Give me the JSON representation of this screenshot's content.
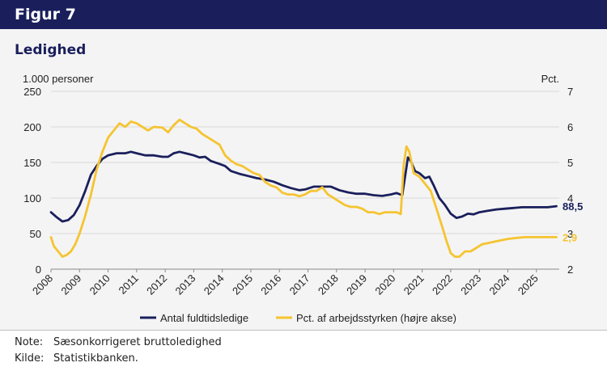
{
  "figure_label": "Figur 7",
  "subtitle": "Ledighed",
  "notes": {
    "note_key": "Note:",
    "note_text": "Sæsonkorrigeret bruttoledighed",
    "source_key": "Kilde:",
    "source_text": "Statistikbanken."
  },
  "colors": {
    "header": "#1a1f5c",
    "navy_series": "#1a1f5c",
    "gold_series": "#f5c431",
    "panel": "#f4f4f4"
  },
  "chart_data": {
    "type": "line",
    "left_axis_title": "1.000 personer",
    "right_axis_title": "Pct.",
    "left_ylim": [
      0,
      250
    ],
    "left_yticks": [
      "0",
      "50",
      "100",
      "150",
      "200",
      "250"
    ],
    "right_ylim": [
      2,
      7
    ],
    "right_yticks": [
      "2",
      "3",
      "4",
      "5",
      "6",
      "7"
    ],
    "xlim": [
      2008,
      2025.8
    ],
    "xticks": [
      "2008",
      "2009",
      "2010",
      "2011",
      "2012",
      "2013",
      "2014",
      "2015",
      "2016",
      "2017",
      "2018",
      "2019",
      "2020",
      "2021",
      "2022",
      "2023",
      "2024",
      "2025"
    ],
    "grid": "horizontal",
    "legend_position": "bottom",
    "series": [
      {
        "name": "Antal fuldtidsledige",
        "axis": "left",
        "color": "#1a1f5c",
        "end_label": "88,5",
        "points": [
          [
            2008.0,
            80
          ],
          [
            2008.2,
            73
          ],
          [
            2008.4,
            67
          ],
          [
            2008.6,
            69
          ],
          [
            2008.8,
            76
          ],
          [
            2009.0,
            90
          ],
          [
            2009.2,
            110
          ],
          [
            2009.4,
            133
          ],
          [
            2009.6,
            145
          ],
          [
            2009.8,
            155
          ],
          [
            2010.0,
            160
          ],
          [
            2010.3,
            163
          ],
          [
            2010.6,
            163
          ],
          [
            2010.8,
            165
          ],
          [
            2011.0,
            163
          ],
          [
            2011.3,
            160
          ],
          [
            2011.6,
            160
          ],
          [
            2011.9,
            158
          ],
          [
            2012.1,
            158
          ],
          [
            2012.3,
            163
          ],
          [
            2012.5,
            165
          ],
          [
            2012.8,
            162
          ],
          [
            2013.0,
            160
          ],
          [
            2013.2,
            157
          ],
          [
            2013.4,
            158
          ],
          [
            2013.6,
            152
          ],
          [
            2013.9,
            148
          ],
          [
            2014.1,
            145
          ],
          [
            2014.3,
            138
          ],
          [
            2014.6,
            134
          ],
          [
            2014.9,
            131
          ],
          [
            2015.2,
            128
          ],
          [
            2015.5,
            126
          ],
          [
            2015.8,
            123
          ],
          [
            2016.1,
            118
          ],
          [
            2016.4,
            114
          ],
          [
            2016.7,
            111
          ],
          [
            2016.9,
            112
          ],
          [
            2017.2,
            116
          ],
          [
            2017.5,
            116
          ],
          [
            2017.8,
            116
          ],
          [
            2018.1,
            111
          ],
          [
            2018.4,
            108
          ],
          [
            2018.7,
            106
          ],
          [
            2019.0,
            106
          ],
          [
            2019.3,
            104
          ],
          [
            2019.6,
            103
          ],
          [
            2019.9,
            105
          ],
          [
            2020.1,
            107
          ],
          [
            2020.3,
            104
          ],
          [
            2020.4,
            130
          ],
          [
            2020.5,
            157
          ],
          [
            2020.6,
            152
          ],
          [
            2020.75,
            138
          ],
          [
            2020.9,
            135
          ],
          [
            2021.1,
            128
          ],
          [
            2021.25,
            130
          ],
          [
            2021.4,
            118
          ],
          [
            2021.6,
            100
          ],
          [
            2021.8,
            90
          ],
          [
            2022.0,
            78
          ],
          [
            2022.2,
            72
          ],
          [
            2022.4,
            74
          ],
          [
            2022.6,
            78
          ],
          [
            2022.8,
            77
          ],
          [
            2023.0,
            80
          ],
          [
            2023.3,
            82
          ],
          [
            2023.6,
            84
          ],
          [
            2023.9,
            85
          ],
          [
            2024.2,
            86
          ],
          [
            2024.5,
            87
          ],
          [
            2024.8,
            87
          ],
          [
            2025.1,
            87
          ],
          [
            2025.4,
            87
          ],
          [
            2025.7,
            88.5
          ]
        ]
      },
      {
        "name": "Pct. af arbejdsstyrken (højre akse)",
        "axis": "right",
        "color": "#f5c431",
        "end_label": "2,9",
        "points": [
          [
            2008.0,
            2.9
          ],
          [
            2008.1,
            2.65
          ],
          [
            2008.25,
            2.5
          ],
          [
            2008.4,
            2.35
          ],
          [
            2008.55,
            2.4
          ],
          [
            2008.7,
            2.5
          ],
          [
            2008.85,
            2.7
          ],
          [
            2009.0,
            3.0
          ],
          [
            2009.2,
            3.5
          ],
          [
            2009.4,
            4.1
          ],
          [
            2009.6,
            4.8
          ],
          [
            2009.8,
            5.3
          ],
          [
            2010.0,
            5.7
          ],
          [
            2010.2,
            5.9
          ],
          [
            2010.4,
            6.1
          ],
          [
            2010.6,
            6.0
          ],
          [
            2010.8,
            6.15
          ],
          [
            2011.0,
            6.1
          ],
          [
            2011.2,
            6.0
          ],
          [
            2011.4,
            5.9
          ],
          [
            2011.6,
            6.0
          ],
          [
            2011.9,
            5.98
          ],
          [
            2012.1,
            5.85
          ],
          [
            2012.3,
            6.05
          ],
          [
            2012.5,
            6.2
          ],
          [
            2012.7,
            6.1
          ],
          [
            2012.9,
            6.0
          ],
          [
            2013.1,
            5.95
          ],
          [
            2013.3,
            5.8
          ],
          [
            2013.5,
            5.7
          ],
          [
            2013.7,
            5.6
          ],
          [
            2013.9,
            5.5
          ],
          [
            2014.1,
            5.2
          ],
          [
            2014.3,
            5.05
          ],
          [
            2014.5,
            4.95
          ],
          [
            2014.7,
            4.9
          ],
          [
            2014.9,
            4.8
          ],
          [
            2015.1,
            4.7
          ],
          [
            2015.3,
            4.65
          ],
          [
            2015.5,
            4.45
          ],
          [
            2015.7,
            4.35
          ],
          [
            2015.9,
            4.3
          ],
          [
            2016.1,
            4.15
          ],
          [
            2016.3,
            4.1
          ],
          [
            2016.5,
            4.1
          ],
          [
            2016.7,
            4.05
          ],
          [
            2016.9,
            4.1
          ],
          [
            2017.1,
            4.2
          ],
          [
            2017.3,
            4.2
          ],
          [
            2017.5,
            4.3
          ],
          [
            2017.7,
            4.1
          ],
          [
            2017.9,
            4.0
          ],
          [
            2018.1,
            3.9
          ],
          [
            2018.3,
            3.8
          ],
          [
            2018.5,
            3.75
          ],
          [
            2018.7,
            3.75
          ],
          [
            2018.9,
            3.7
          ],
          [
            2019.1,
            3.6
          ],
          [
            2019.3,
            3.6
          ],
          [
            2019.5,
            3.55
          ],
          [
            2019.7,
            3.6
          ],
          [
            2019.9,
            3.6
          ],
          [
            2020.1,
            3.6
          ],
          [
            2020.25,
            3.55
          ],
          [
            2020.35,
            4.9
          ],
          [
            2020.45,
            5.45
          ],
          [
            2020.55,
            5.3
          ],
          [
            2020.7,
            4.7
          ],
          [
            2020.9,
            4.6
          ],
          [
            2021.1,
            4.4
          ],
          [
            2021.3,
            4.2
          ],
          [
            2021.5,
            3.7
          ],
          [
            2021.7,
            3.2
          ],
          [
            2021.85,
            2.8
          ],
          [
            2022.0,
            2.45
          ],
          [
            2022.15,
            2.35
          ],
          [
            2022.3,
            2.35
          ],
          [
            2022.5,
            2.5
          ],
          [
            2022.7,
            2.5
          ],
          [
            2022.9,
            2.6
          ],
          [
            2023.1,
            2.7
          ],
          [
            2023.4,
            2.75
          ],
          [
            2023.7,
            2.8
          ],
          [
            2024.0,
            2.85
          ],
          [
            2024.3,
            2.88
          ],
          [
            2024.6,
            2.9
          ],
          [
            2024.9,
            2.9
          ],
          [
            2025.2,
            2.9
          ],
          [
            2025.7,
            2.9
          ]
        ]
      }
    ]
  }
}
